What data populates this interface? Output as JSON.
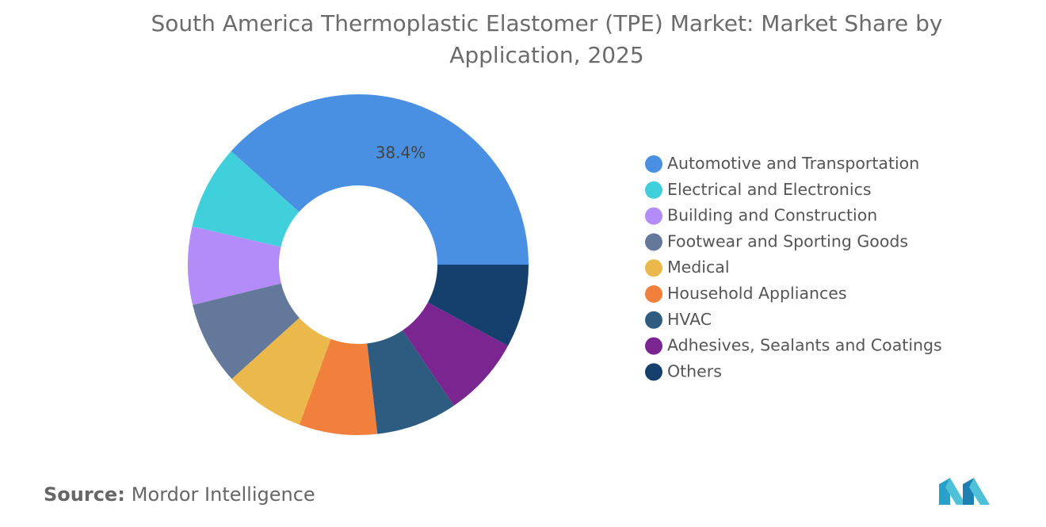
{
  "chart_data": {
    "type": "donut",
    "title": "South America Thermoplastic Elastomer (TPE) Market: Market Share by Application, 2025",
    "categories": [
      "Automotive and Transportation",
      "Electrical and Electronics",
      "Building and Construction",
      "Footwear and Sporting Goods",
      "Medical",
      "Household Appliances",
      "HVAC",
      "Adhesives, Sealants and Coatings",
      "Others"
    ],
    "values": [
      38.4,
      8.0,
      7.4,
      7.9,
      7.7,
      7.4,
      7.7,
      7.6,
      7.9
    ],
    "value_labels": [
      "38.4%",
      null,
      null,
      null,
      null,
      null,
      null,
      null,
      null
    ],
    "colors": [
      "#4a90e2",
      "#40d0dc",
      "#b48cf7",
      "#64789b",
      "#ebb84b",
      "#f0803c",
      "#2e5c80",
      "#7b2591",
      "#15406e"
    ],
    "legend": "right"
  },
  "source": {
    "label": "Source:",
    "text": "Mordor Intelligence"
  }
}
